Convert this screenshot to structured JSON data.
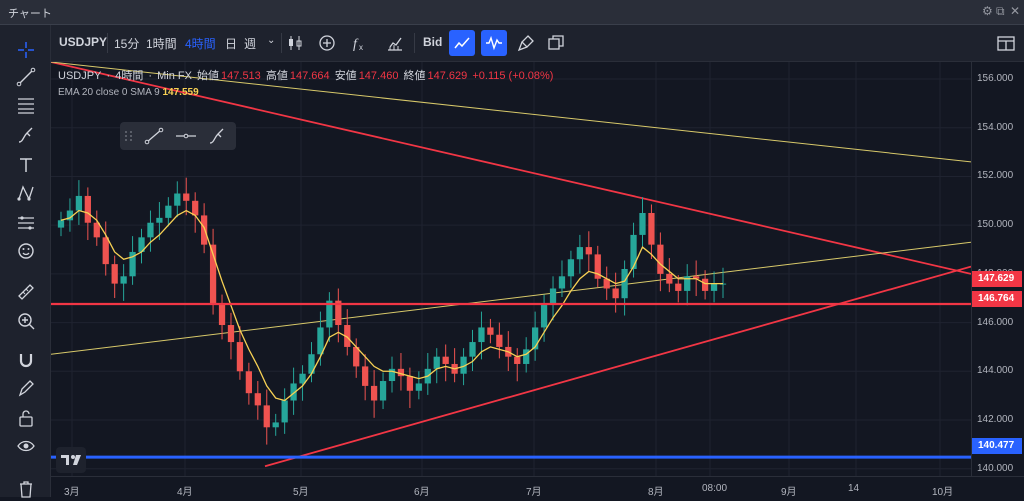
{
  "window": {
    "title": "チャート"
  },
  "toolbar": {
    "symbol": "USDJPY",
    "intervals": [
      "15分",
      "1時間",
      "4時間",
      "日",
      "週"
    ],
    "bid_label": "Bid"
  },
  "legend": {
    "symbol": "USDJPY",
    "interval": "4時間",
    "source": "Min FX",
    "open_label": "始値",
    "open": "147.513",
    "high_label": "高値",
    "high": "147.664",
    "low_label": "安値",
    "low": "147.460",
    "close_label": "終値",
    "close": "147.629",
    "change": "+0.115 (+0.08%)",
    "indicator_label": "EMA 20 close 0 SMA 9",
    "indicator_value": "147.559"
  },
  "price_tags": {
    "last": {
      "value": "147.629",
      "color": "#f23645"
    },
    "red_line": {
      "value": "146.764",
      "color": "#f23645"
    },
    "blue_line": {
      "value": "140.477",
      "color": "#2962ff"
    }
  },
  "colors": {
    "background": "#131722",
    "up": "#26a69a",
    "down": "#ef5350",
    "ema": "#f7d154",
    "trendline_red": "#f23645",
    "trendline_yellow": "#d8c96a",
    "support_blue": "#2962ff",
    "active_tool": "#2962ff"
  },
  "chart_data": {
    "type": "candlestick",
    "symbol": "USDJPY",
    "y_range": [
      139.7,
      156.7
    ],
    "y_ticks": [
      "156.000",
      "154.000",
      "152.000",
      "150.000",
      "148.000",
      "146.000",
      "144.000",
      "142.000",
      "140.000"
    ],
    "x_ticks": [
      "3月",
      "4月",
      "5月",
      "6月",
      "7月",
      "8月",
      "08:00",
      "9月",
      "14",
      "10月"
    ],
    "close_series": [
      150.2,
      150.6,
      151.2,
      150.1,
      149.5,
      148.4,
      147.6,
      147.9,
      148.9,
      149.5,
      150.1,
      150.3,
      150.8,
      151.3,
      151.0,
      150.4,
      149.2,
      146.8,
      145.9,
      145.2,
      144.0,
      143.1,
      142.6,
      141.7,
      141.9,
      142.8,
      143.5,
      143.9,
      144.7,
      145.8,
      146.9,
      145.9,
      145.0,
      144.2,
      143.4,
      142.8,
      143.6,
      144.1,
      143.8,
      143.2,
      143.5,
      144.1,
      144.6,
      144.3,
      143.9,
      144.6,
      145.2,
      145.8,
      145.5,
      145.0,
      144.6,
      144.3,
      144.9,
      145.8,
      146.8,
      147.4,
      147.9,
      148.6,
      149.1,
      148.8,
      147.8,
      147.4,
      147.0,
      148.2,
      149.6,
      150.5,
      149.2,
      148.0,
      147.6,
      147.3,
      147.9,
      147.8,
      147.3,
      147.6,
      147.6
    ],
    "ema_series": [
      150.2,
      150.3,
      150.6,
      150.5,
      150.2,
      149.6,
      148.9,
      148.6,
      148.7,
      148.9,
      149.3,
      149.6,
      150.0,
      150.4,
      150.6,
      150.4,
      149.9,
      148.8,
      147.7,
      146.7,
      145.7,
      144.9,
      144.2,
      143.4,
      142.9,
      142.8,
      143.1,
      143.4,
      143.9,
      144.6,
      145.4,
      145.6,
      145.4,
      145.0,
      144.6,
      144.2,
      144.0,
      144.0,
      143.9,
      143.8,
      143.7,
      143.8,
      144.1,
      144.2,
      144.1,
      144.2,
      144.4,
      144.8,
      145.0,
      144.9,
      144.8,
      144.6,
      144.7,
      145.0,
      145.6,
      146.2,
      146.7,
      147.3,
      147.8,
      148.1,
      148.0,
      147.8,
      147.6,
      147.7,
      148.3,
      149.1,
      148.8,
      148.4,
      148.1,
      147.8,
      147.8,
      147.8,
      147.6,
      147.6,
      147.6
    ],
    "horizontal_lines": [
      {
        "price": 146.764,
        "color": "red"
      },
      {
        "price": 140.477,
        "color": "blue"
      }
    ],
    "trendlines": [
      {
        "color": "red",
        "from": [
          "3月",
          156.7
        ],
        "to": [
          "10月",
          148.0
        ]
      },
      {
        "color": "red",
        "from": [
          "4月",
          140.1
        ],
        "to": [
          "10月",
          148.3
        ]
      },
      {
        "color": "yellow",
        "from": [
          "3月",
          156.7
        ],
        "to": [
          "10月",
          152.6
        ]
      },
      {
        "color": "yellow",
        "from": [
          "3月",
          144.7
        ],
        "to": [
          "10月",
          149.3
        ]
      }
    ]
  }
}
